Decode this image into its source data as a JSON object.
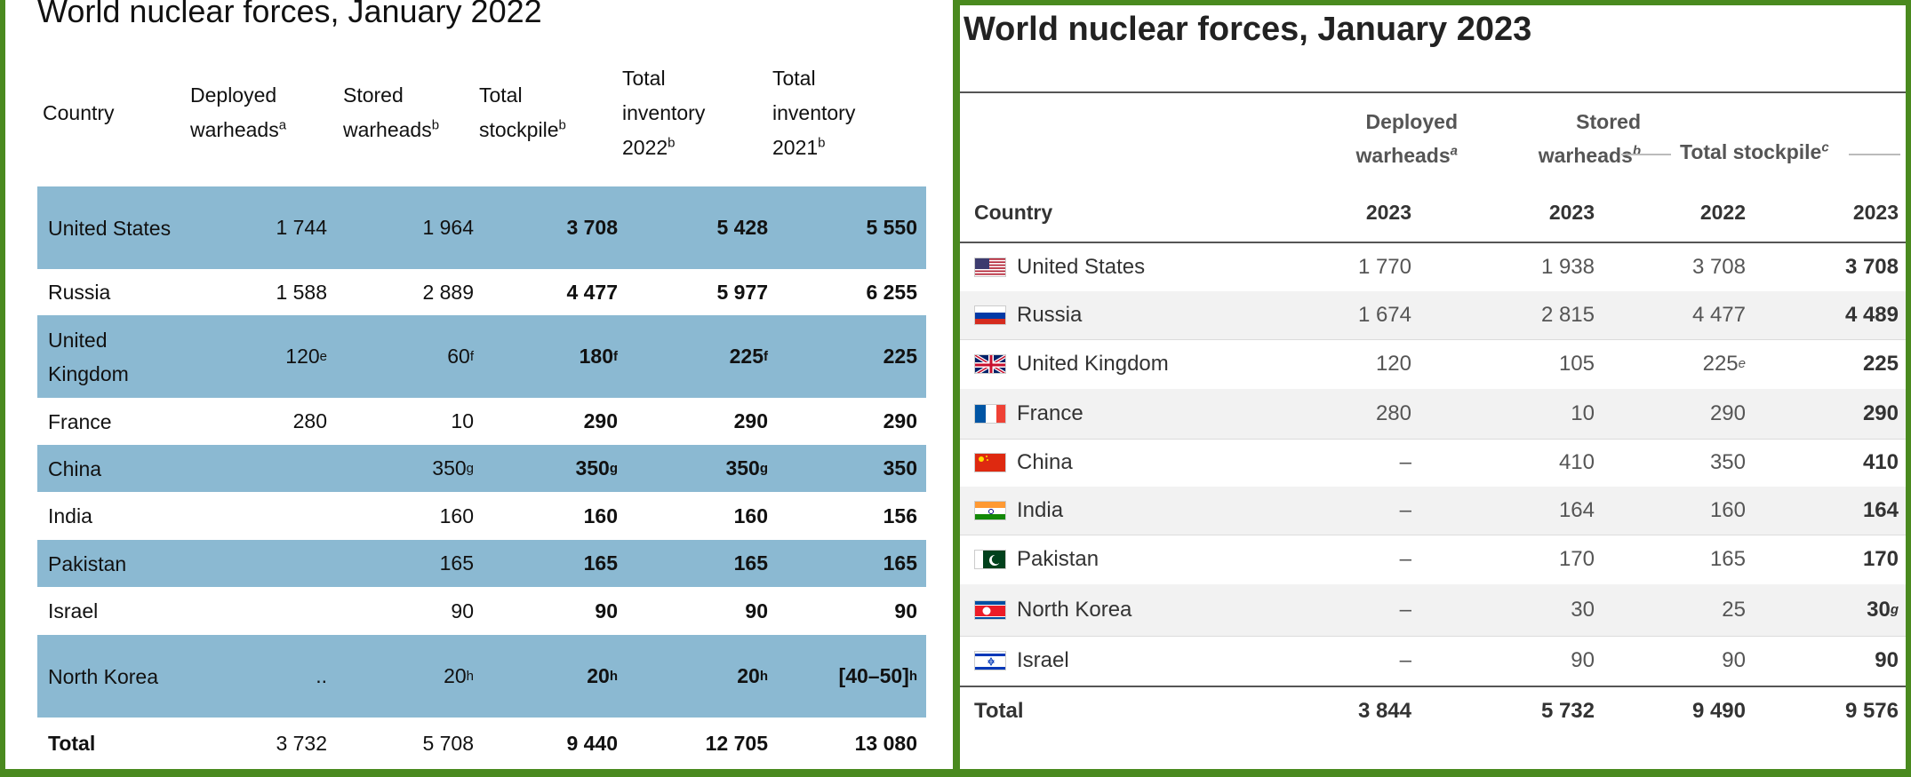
{
  "left": {
    "title": "World nuclear forces, January 2022",
    "headers": {
      "country": "Country",
      "deployed_1": "Deployed",
      "deployed_2": "warheads",
      "deployed_sup": "a",
      "stored_1": "Stored",
      "stored_2": "warheads",
      "stored_sup": "b",
      "total_1": "Total",
      "total_2": "stockpile",
      "total_sup": "b",
      "inv22_1": "Total",
      "inv22_2": "inventory",
      "inv22_3": "2022",
      "inv22_sup": "b",
      "inv21_1": "Total",
      "inv21_2": "inventory",
      "inv21_3": "2021",
      "inv21_sup": "b"
    },
    "rows": [
      {
        "country": "United States",
        "deployed": "1 744",
        "deployed_sup": "",
        "stored": "1 964",
        "stored_sup": "",
        "stockpile": "3 708",
        "stockpile_sup": "",
        "inv2022": "5 428",
        "inv2022_sup": "",
        "inv2021": "5 550",
        "inv2021_sup": ""
      },
      {
        "country": "Russia",
        "deployed": "1 588",
        "deployed_sup": "",
        "stored": "2 889",
        "stored_sup": "",
        "stockpile": "4 477",
        "stockpile_sup": "",
        "inv2022": "5 977",
        "inv2022_sup": "",
        "inv2021": "6 255",
        "inv2021_sup": ""
      },
      {
        "country": "United Kingdom",
        "deployed": "120",
        "deployed_sup": "e",
        "stored": "60",
        "stored_sup": "f",
        "stockpile": "180",
        "stockpile_sup": "f",
        "inv2022": "225",
        "inv2022_sup": "f",
        "inv2021": "225",
        "inv2021_sup": ""
      },
      {
        "country": "France",
        "deployed": "280",
        "deployed_sup": "",
        "stored": "10",
        "stored_sup": "",
        "stockpile": "290",
        "stockpile_sup": "",
        "inv2022": "290",
        "inv2022_sup": "",
        "inv2021": "290",
        "inv2021_sup": ""
      },
      {
        "country": "China",
        "deployed": "",
        "deployed_sup": "",
        "stored": "350",
        "stored_sup": "g",
        "stockpile": "350",
        "stockpile_sup": "g",
        "inv2022": "350",
        "inv2022_sup": "g",
        "inv2021": "350",
        "inv2021_sup": ""
      },
      {
        "country": "India",
        "deployed": "",
        "deployed_sup": "",
        "stored": "160",
        "stored_sup": "",
        "stockpile": "160",
        "stockpile_sup": "",
        "inv2022": "160",
        "inv2022_sup": "",
        "inv2021": "156",
        "inv2021_sup": ""
      },
      {
        "country": "Pakistan",
        "deployed": "",
        "deployed_sup": "",
        "stored": "165",
        "stored_sup": "",
        "stockpile": "165",
        "stockpile_sup": "",
        "inv2022": "165",
        "inv2022_sup": "",
        "inv2021": "165",
        "inv2021_sup": ""
      },
      {
        "country": "Israel",
        "deployed": "",
        "deployed_sup": "",
        "stored": "90",
        "stored_sup": "",
        "stockpile": "90",
        "stockpile_sup": "",
        "inv2022": "90",
        "inv2022_sup": "",
        "inv2021": "90",
        "inv2021_sup": ""
      },
      {
        "country": "North Korea",
        "deployed": "..",
        "deployed_sup": "",
        "stored": "20",
        "stored_sup": "h",
        "stockpile": "20",
        "stockpile_sup": "h",
        "inv2022": "20",
        "inv2022_sup": "h",
        "inv2021": "[40–50]",
        "inv2021_sup": "h"
      },
      {
        "country": "Total",
        "deployed": "3 732",
        "deployed_sup": "",
        "stored": "5 708",
        "stored_sup": "",
        "stockpile": "9 440",
        "stockpile_sup": "",
        "inv2022": "12 705",
        "inv2022_sup": "",
        "inv2021": "13 080",
        "inv2021_sup": ""
      }
    ]
  },
  "right": {
    "title": "World nuclear forces, January 2023",
    "headers": {
      "deployed_1": "Deployed",
      "deployed_2": "warheads",
      "deployed_sup": "a",
      "stored_1": "Stored",
      "stored_2": "warheads",
      "stored_sup": "b",
      "stockpile": "Total stockpile",
      "stockpile_sup": "c",
      "country": "Country",
      "y_deployed": "2023",
      "y_stored": "2023",
      "y_stock22": "2022",
      "y_stock23": "2023"
    },
    "rows": [
      {
        "flag": "us-flag-icon",
        "country": "United States",
        "deployed": "1 770",
        "stored": "1 938",
        "stock2022": "3 708",
        "stock2022_sup": "",
        "stock2023": "3 708",
        "stock2023_sup": ""
      },
      {
        "flag": "russia-flag-icon",
        "country": "Russia",
        "deployed": "1 674",
        "stored": "2 815",
        "stock2022": "4 477",
        "stock2022_sup": "",
        "stock2023": "4 489",
        "stock2023_sup": ""
      },
      {
        "flag": "uk-flag-icon",
        "country": "United Kingdom",
        "deployed": "120",
        "stored": "105",
        "stock2022": "225",
        "stock2022_sup": "e",
        "stock2023": "225",
        "stock2023_sup": ""
      },
      {
        "flag": "france-flag-icon",
        "country": "France",
        "deployed": "280",
        "stored": "10",
        "stock2022": "290",
        "stock2022_sup": "",
        "stock2023": "290",
        "stock2023_sup": ""
      },
      {
        "flag": "china-flag-icon",
        "country": "China",
        "deployed": "–",
        "stored": "410",
        "stock2022": "350",
        "stock2022_sup": "",
        "stock2023": "410",
        "stock2023_sup": ""
      },
      {
        "flag": "india-flag-icon",
        "country": "India",
        "deployed": "–",
        "stored": "164",
        "stock2022": "160",
        "stock2022_sup": "",
        "stock2023": "164",
        "stock2023_sup": ""
      },
      {
        "flag": "pakistan-flag-icon",
        "country": "Pakistan",
        "deployed": "–",
        "stored": "170",
        "stock2022": "165",
        "stock2022_sup": "",
        "stock2023": "170",
        "stock2023_sup": ""
      },
      {
        "flag": "north-korea-flag-icon",
        "country": "North Korea",
        "deployed": "–",
        "stored": "30",
        "stock2022": "25",
        "stock2022_sup": "",
        "stock2023": "30",
        "stock2023_sup": "g"
      },
      {
        "flag": "israel-flag-icon",
        "country": "Israel",
        "deployed": "–",
        "stored": "90",
        "stock2022": "90",
        "stock2022_sup": "",
        "stock2023": "90",
        "stock2023_sup": ""
      },
      {
        "flag": "",
        "country": "Total",
        "deployed": "3 844",
        "stored": "5 732",
        "stock2022": "9 490",
        "stock2022_sup": "",
        "stock2023": "9 576",
        "stock2023_sup": ""
      }
    ]
  },
  "colors": {
    "frame_green": "#4a8a1f",
    "row_blue": "#8bb9d2"
  }
}
